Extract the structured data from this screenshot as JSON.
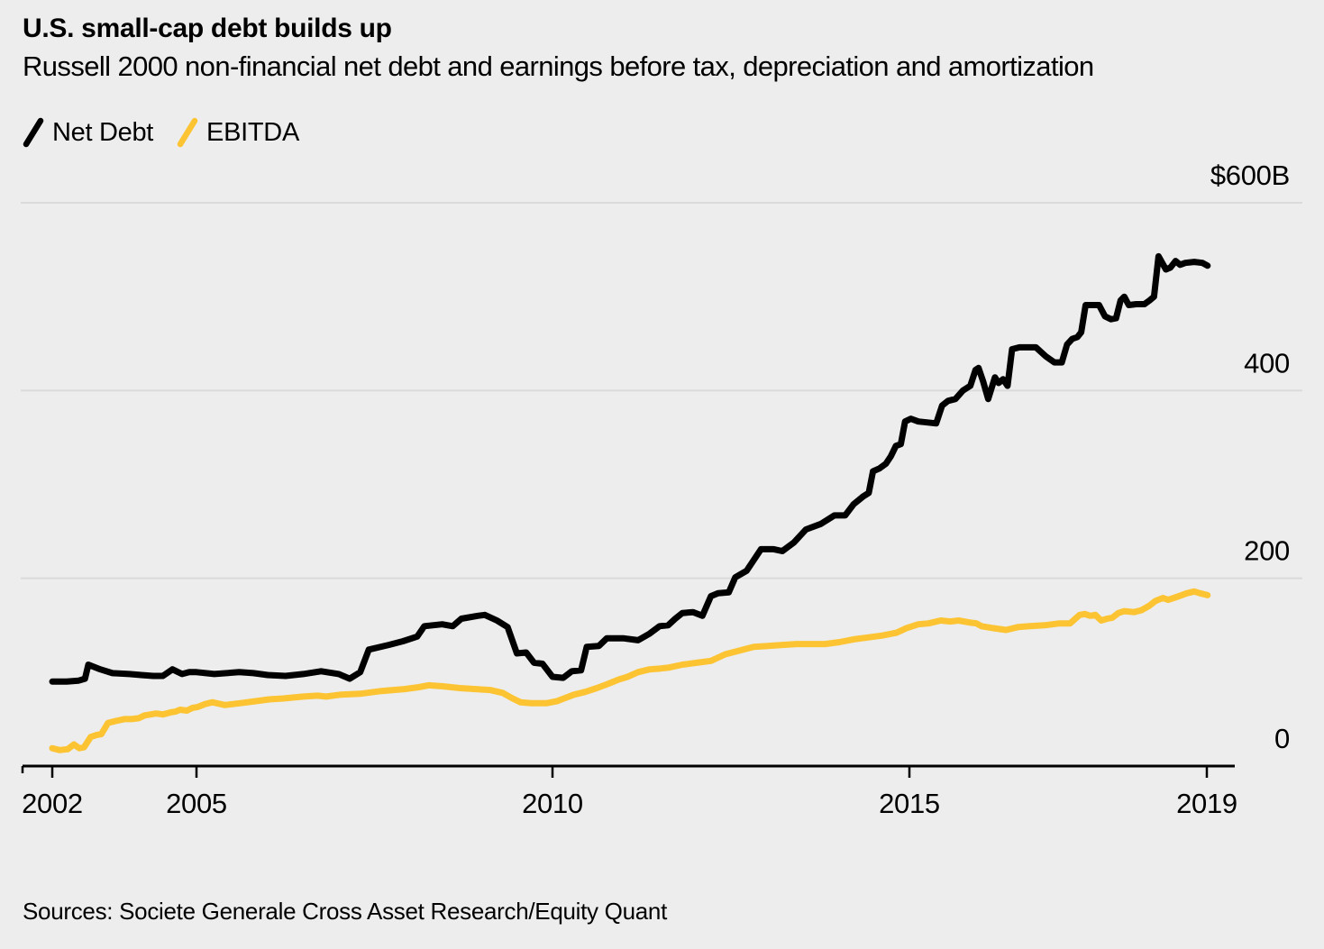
{
  "header": {
    "title": "U.S. small-cap debt builds up",
    "subtitle": "Russell 2000 non-financial net debt and earnings before tax, depreciation and amortization"
  },
  "source": "Sources: Societe Generale Cross Asset Research/Equity Quant",
  "colors": {
    "background": "#EDEDED",
    "gridline": "#DADADA",
    "axis": "#000000",
    "net_debt": "#000000",
    "ebitda": "#FCC433",
    "text": "#000000"
  },
  "chart_data": {
    "type": "line",
    "title": "U.S. small-cap debt builds up",
    "subtitle": "Russell 2000 non-financial net debt and earnings before tax, depreciation and amortization",
    "unit": "$B",
    "legend_position": "top-left",
    "grid": true,
    "x_axis": {
      "range": [
        2002,
        2019
      ],
      "ticks": [
        {
          "value": 2002,
          "label": "2002"
        },
        {
          "value": 2005,
          "label": "2005"
        },
        {
          "value": 2010,
          "label": "2010"
        },
        {
          "value": 2015,
          "label": "2015"
        },
        {
          "value": 2019,
          "label": "2019"
        }
      ]
    },
    "y_axis": {
      "range": [
        0,
        600
      ],
      "side": "right",
      "ticks": [
        {
          "value": 600,
          "label": "$600B"
        },
        {
          "value": 400,
          "label": "400"
        },
        {
          "value": 200,
          "label": "200"
        },
        {
          "value": 0,
          "label": "0"
        }
      ]
    },
    "series": [
      {
        "name": "Net Debt",
        "color": "#000000",
        "points": [
          [
            2002.0,
            90
          ],
          [
            2002.3,
            90
          ],
          [
            2002.55,
            91
          ],
          [
            2002.68,
            93
          ],
          [
            2002.75,
            108
          ],
          [
            2003.0,
            103
          ],
          [
            2003.25,
            99
          ],
          [
            2003.6,
            98
          ],
          [
            2003.85,
            97
          ],
          [
            2004.1,
            96
          ],
          [
            2004.3,
            96
          ],
          [
            2004.5,
            103
          ],
          [
            2004.7,
            98
          ],
          [
            2004.85,
            100
          ],
          [
            2005.0,
            100
          ],
          [
            2005.25,
            98
          ],
          [
            2005.6,
            100
          ],
          [
            2005.8,
            99
          ],
          [
            2006.0,
            97
          ],
          [
            2006.25,
            96
          ],
          [
            2006.5,
            98
          ],
          [
            2006.75,
            101
          ],
          [
            2007.0,
            98
          ],
          [
            2007.15,
            93
          ],
          [
            2007.3,
            100
          ],
          [
            2007.42,
            124
          ],
          [
            2007.7,
            129
          ],
          [
            2007.9,
            133
          ],
          [
            2008.1,
            138
          ],
          [
            2008.2,
            149
          ],
          [
            2008.45,
            151
          ],
          [
            2008.6,
            149
          ],
          [
            2008.72,
            157
          ],
          [
            2008.95,
            160
          ],
          [
            2009.05,
            161
          ],
          [
            2009.22,
            155
          ],
          [
            2009.37,
            148
          ],
          [
            2009.5,
            120
          ],
          [
            2009.63,
            121
          ],
          [
            2009.74,
            110
          ],
          [
            2009.86,
            109
          ],
          [
            2010.0,
            95
          ],
          [
            2010.15,
            94
          ],
          [
            2010.27,
            101
          ],
          [
            2010.4,
            102
          ],
          [
            2010.48,
            127
          ],
          [
            2010.65,
            128
          ],
          [
            2010.76,
            136
          ],
          [
            2011.0,
            136
          ],
          [
            2011.2,
            134
          ],
          [
            2011.36,
            141
          ],
          [
            2011.5,
            149
          ],
          [
            2011.62,
            150
          ],
          [
            2011.72,
            157
          ],
          [
            2011.82,
            163
          ],
          [
            2011.97,
            164
          ],
          [
            2012.1,
            160
          ],
          [
            2012.22,
            181
          ],
          [
            2012.32,
            184
          ],
          [
            2012.47,
            185
          ],
          [
            2012.56,
            201
          ],
          [
            2012.72,
            208
          ],
          [
            2012.92,
            231
          ],
          [
            2013.1,
            231
          ],
          [
            2013.22,
            229
          ],
          [
            2013.38,
            238
          ],
          [
            2013.55,
            252
          ],
          [
            2013.76,
            258
          ],
          [
            2013.95,
            267
          ],
          [
            2014.1,
            267
          ],
          [
            2014.22,
            279
          ],
          [
            2014.35,
            287
          ],
          [
            2014.43,
            291
          ],
          [
            2014.49,
            314
          ],
          [
            2014.58,
            317
          ],
          [
            2014.67,
            322
          ],
          [
            2014.74,
            330
          ],
          [
            2014.81,
            341
          ],
          [
            2014.88,
            343
          ],
          [
            2014.94,
            367
          ],
          [
            2015.02,
            370
          ],
          [
            2015.12,
            367
          ],
          [
            2015.25,
            366
          ],
          [
            2015.36,
            365
          ],
          [
            2015.44,
            384
          ],
          [
            2015.52,
            389
          ],
          [
            2015.62,
            391
          ],
          [
            2015.72,
            400
          ],
          [
            2015.82,
            405
          ],
          [
            2015.89,
            422
          ],
          [
            2015.93,
            424
          ],
          [
            2015.99,
            410
          ],
          [
            2016.06,
            391
          ],
          [
            2016.15,
            414
          ],
          [
            2016.2,
            408
          ],
          [
            2016.26,
            412
          ],
          [
            2016.32,
            405
          ],
          [
            2016.38,
            444
          ],
          [
            2016.48,
            446
          ],
          [
            2016.7,
            446
          ],
          [
            2016.84,
            436
          ],
          [
            2016.95,
            430
          ],
          [
            2017.05,
            430
          ],
          [
            2017.12,
            449
          ],
          [
            2017.19,
            455
          ],
          [
            2017.26,
            457
          ],
          [
            2017.31,
            462
          ],
          [
            2017.37,
            491
          ],
          [
            2017.55,
            491
          ],
          [
            2017.63,
            479
          ],
          [
            2017.71,
            476
          ],
          [
            2017.78,
            477
          ],
          [
            2017.84,
            496
          ],
          [
            2017.89,
            500
          ],
          [
            2017.95,
            491
          ],
          [
            2018.05,
            492
          ],
          [
            2018.16,
            492
          ],
          [
            2018.23,
            496
          ],
          [
            2018.29,
            500
          ],
          [
            2018.35,
            543
          ],
          [
            2018.45,
            529
          ],
          [
            2018.51,
            531
          ],
          [
            2018.58,
            538
          ],
          [
            2018.64,
            534
          ],
          [
            2018.71,
            536
          ],
          [
            2018.83,
            537
          ],
          [
            2018.94,
            536
          ],
          [
            2019.01,
            533
          ]
        ]
      },
      {
        "name": "EBITDA",
        "color": "#FCC433",
        "points": [
          [
            2002.0,
            19
          ],
          [
            2002.15,
            17
          ],
          [
            2002.32,
            18
          ],
          [
            2002.45,
            23
          ],
          [
            2002.56,
            19
          ],
          [
            2002.66,
            20
          ],
          [
            2002.8,
            31
          ],
          [
            2002.92,
            33
          ],
          [
            2003.02,
            34
          ],
          [
            2003.16,
            46
          ],
          [
            2003.32,
            48
          ],
          [
            2003.5,
            50
          ],
          [
            2003.65,
            50
          ],
          [
            2003.8,
            51
          ],
          [
            2003.92,
            54
          ],
          [
            2004.05,
            55
          ],
          [
            2004.16,
            56
          ],
          [
            2004.3,
            55
          ],
          [
            2004.45,
            57
          ],
          [
            2004.56,
            58
          ],
          [
            2004.66,
            60
          ],
          [
            2004.8,
            59
          ],
          [
            2004.92,
            62
          ],
          [
            2005.02,
            63
          ],
          [
            2005.12,
            66
          ],
          [
            2005.22,
            68
          ],
          [
            2005.4,
            65
          ],
          [
            2005.62,
            67
          ],
          [
            2005.82,
            69
          ],
          [
            2006.02,
            71
          ],
          [
            2006.22,
            72
          ],
          [
            2006.5,
            74
          ],
          [
            2006.7,
            75
          ],
          [
            2006.82,
            74
          ],
          [
            2007.02,
            76
          ],
          [
            2007.3,
            77
          ],
          [
            2007.6,
            80
          ],
          [
            2007.92,
            82
          ],
          [
            2008.12,
            84
          ],
          [
            2008.26,
            86
          ],
          [
            2008.46,
            85
          ],
          [
            2008.7,
            83
          ],
          [
            2008.92,
            82
          ],
          [
            2009.12,
            81
          ],
          [
            2009.3,
            78
          ],
          [
            2009.44,
            72
          ],
          [
            2009.55,
            68
          ],
          [
            2009.7,
            67
          ],
          [
            2009.92,
            67
          ],
          [
            2010.06,
            69
          ],
          [
            2010.16,
            72
          ],
          [
            2010.3,
            76
          ],
          [
            2010.46,
            79
          ],
          [
            2010.62,
            83
          ],
          [
            2010.76,
            87
          ],
          [
            2010.92,
            92
          ],
          [
            2011.05,
            95
          ],
          [
            2011.2,
            100
          ],
          [
            2011.36,
            103
          ],
          [
            2011.52,
            104
          ],
          [
            2011.64,
            105
          ],
          [
            2011.82,
            108
          ],
          [
            2012.02,
            110
          ],
          [
            2012.22,
            112
          ],
          [
            2012.42,
            119
          ],
          [
            2012.62,
            123
          ],
          [
            2012.82,
            127
          ],
          [
            2013.02,
            128
          ],
          [
            2013.22,
            129
          ],
          [
            2013.42,
            130
          ],
          [
            2013.62,
            130
          ],
          [
            2013.82,
            130
          ],
          [
            2014.02,
            132
          ],
          [
            2014.22,
            135
          ],
          [
            2014.42,
            137
          ],
          [
            2014.62,
            139
          ],
          [
            2014.82,
            142
          ],
          [
            2014.96,
            147
          ],
          [
            2015.12,
            151
          ],
          [
            2015.26,
            152
          ],
          [
            2015.42,
            155
          ],
          [
            2015.55,
            154
          ],
          [
            2015.66,
            155
          ],
          [
            2015.8,
            153
          ],
          [
            2015.9,
            152
          ],
          [
            2015.97,
            149
          ],
          [
            2016.12,
            147
          ],
          [
            2016.3,
            145
          ],
          [
            2016.46,
            148
          ],
          [
            2016.62,
            149
          ],
          [
            2016.82,
            150
          ],
          [
            2017.02,
            152
          ],
          [
            2017.16,
            152
          ],
          [
            2017.29,
            161
          ],
          [
            2017.36,
            162
          ],
          [
            2017.43,
            160
          ],
          [
            2017.5,
            161
          ],
          [
            2017.58,
            155
          ],
          [
            2017.66,
            157
          ],
          [
            2017.73,
            158
          ],
          [
            2017.81,
            163
          ],
          [
            2017.89,
            165
          ],
          [
            2018.02,
            164
          ],
          [
            2018.12,
            166
          ],
          [
            2018.23,
            171
          ],
          [
            2018.31,
            176
          ],
          [
            2018.41,
            179
          ],
          [
            2018.48,
            177
          ],
          [
            2018.59,
            180
          ],
          [
            2018.66,
            182
          ],
          [
            2018.73,
            184
          ],
          [
            2018.83,
            186
          ],
          [
            2018.91,
            184
          ],
          [
            2019.01,
            182
          ]
        ]
      }
    ]
  }
}
